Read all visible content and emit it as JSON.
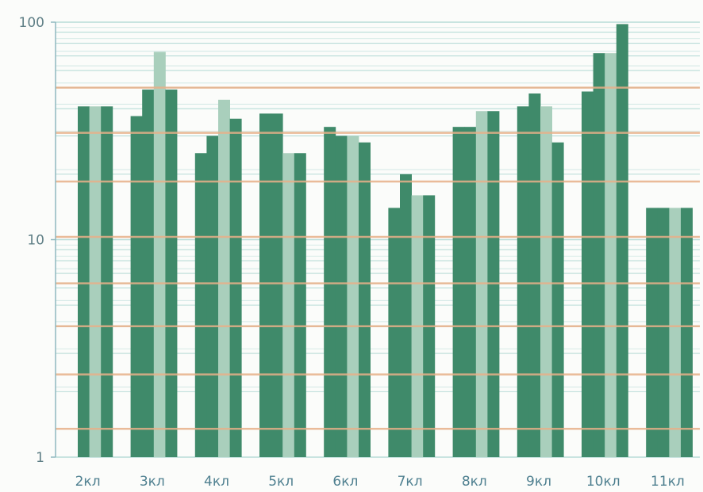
{
  "chart_data": {
    "type": "bar",
    "title": "",
    "xlabel": "",
    "ylabel": "",
    "scale": "log",
    "ylim": [
      1,
      100
    ],
    "yticks": [
      1,
      10,
      100
    ],
    "ytick_labels": [
      "1",
      "10",
      "100"
    ],
    "grid": true,
    "legend": "none",
    "categories": [
      "2кл",
      "3кл",
      "4кл",
      "5кл",
      "6кл",
      "7кл",
      "8кл",
      "9кл",
      "10кл",
      "11кл"
    ],
    "series": [
      {
        "values": [
          null,
          37,
          25,
          38,
          33,
          14,
          33,
          41,
          48,
          14
        ]
      },
      {
        "values": [
          41,
          49,
          30,
          38,
          30,
          20,
          33,
          47,
          72,
          14
        ]
      },
      {
        "values": [
          41,
          73,
          44,
          25,
          30,
          16,
          39,
          41,
          72,
          14
        ]
      },
      {
        "values": [
          41,
          49,
          36,
          25,
          28,
          16,
          39,
          28,
          98,
          14
        ]
      }
    ],
    "colors": {
      "dark_bar": "#3f8a6a",
      "light_bar": "#a9cfbc",
      "grid_line": "#b8dcd7",
      "orange_line": "#e8b089",
      "axis": "#8fb8bf"
    }
  }
}
